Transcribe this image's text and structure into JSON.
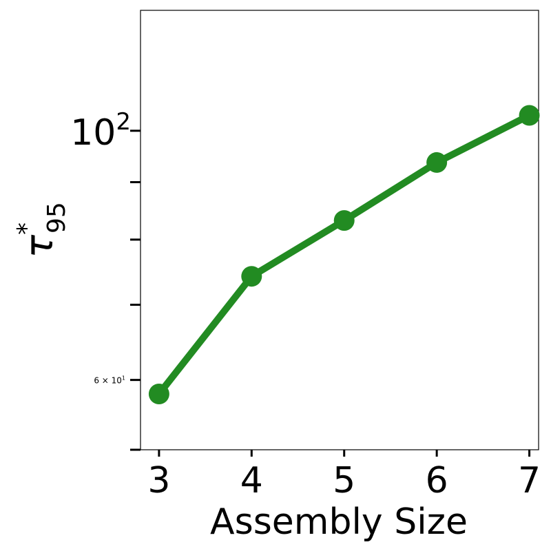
{
  "chart_data": {
    "type": "line",
    "xlabel": "Assembly Size",
    "ylabel": "τ*95",
    "ylabel_symbol": "τ",
    "ylabel_superscript": "*",
    "ylabel_subscript": "95",
    "x": [
      3,
      4,
      5,
      6,
      7
    ],
    "series": [
      {
        "values": [
          58.3,
          74.2,
          83.2,
          93.7,
          103.2
        ]
      }
    ],
    "xlim": [
      2.8,
      7.1
    ],
    "ylim": [
      52,
      128
    ],
    "yscale": "log",
    "x_ticks": [
      "3",
      "4",
      "5",
      "6",
      "7"
    ],
    "y_major_ticks": [
      {
        "value": 100,
        "base": "10",
        "exp": "2"
      }
    ],
    "y_minor_ticks": [
      {
        "value": 60,
        "label": "6 × 10",
        "exp": "1"
      },
      {
        "value": 70,
        "label": ""
      },
      {
        "value": 80,
        "label": ""
      },
      {
        "value": 90,
        "label": ""
      }
    ],
    "grid": false,
    "line_color": "#228B22",
    "marker_color": "#228B22"
  }
}
